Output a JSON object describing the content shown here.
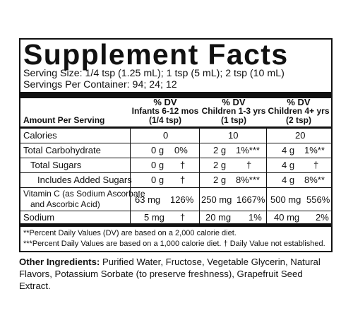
{
  "title": "Supplement Facts",
  "serving_size": "Serving Size: 1/4 tsp (1.25 mL); 1 tsp (5 mL); 2 tsp (10 mL)",
  "servings_per_container": "Servings Per Container: 94; 24; 12",
  "amount_per_serving": "Amount Per Serving",
  "columns": [
    {
      "dv": "% DV",
      "group": "Infants 6-12 mos",
      "dose": "(1/4 tsp)"
    },
    {
      "dv": "% DV",
      "group": "Children 1-3 yrs",
      "dose": "(1 tsp)"
    },
    {
      "dv": "% DV",
      "group": "Children 4+ yrs",
      "dose": "(2 tsp)"
    }
  ],
  "rows": [
    {
      "name": "Calories",
      "c1_amt": "0",
      "c1_dv": "",
      "c2_amt": "10",
      "c2_dv": "",
      "c3_amt": "20",
      "c3_dv": ""
    },
    {
      "name": "Total Carbohydrate",
      "c1_amt": "0 g",
      "c1_dv": "0%",
      "c2_amt": "2 g",
      "c2_dv": "1%***",
      "c3_amt": "4 g",
      "c3_dv": "1%**"
    },
    {
      "name": "Total Sugars",
      "c1_amt": "0 g",
      "c1_dv": "†",
      "c2_amt": "2 g",
      "c2_dv": "†",
      "c3_amt": "4 g",
      "c3_dv": "†"
    },
    {
      "name": "Includes Added Sugars",
      "c1_amt": "0 g",
      "c1_dv": "†",
      "c2_amt": "2 g",
      "c2_dv": "8%***",
      "c3_amt": "4 g",
      "c3_dv": "8%**"
    },
    {
      "name": "Vitamin C (as Sodium Ascorbate",
      "name2": "and Ascorbic Acid)",
      "c1_amt": "63 mg",
      "c1_dv": "126%",
      "c2_amt": "250 mg",
      "c2_dv": "1667%",
      "c3_amt": "500 mg",
      "c3_dv": "556%"
    },
    {
      "name": "Sodium",
      "c1_amt": "5 mg",
      "c1_dv": "†",
      "c2_amt": "20 mg",
      "c2_dv": "1%",
      "c3_amt": "40 mg",
      "c3_dv": "2%"
    }
  ],
  "footnotes": [
    "**Percent Daily Values (DV) are based on a 2,000 calorie diet.",
    "***Percent Daily Values are based on a 1,000 calorie diet. † Daily Value not established."
  ],
  "other_ingredients_label": "Other Ingredients:",
  "other_ingredients_text": "Purified Water, Fructose, Vegetable Glycerin, Natural Flavors, Potassium Sorbate (to preserve freshness), Grapefruit Seed Extract."
}
